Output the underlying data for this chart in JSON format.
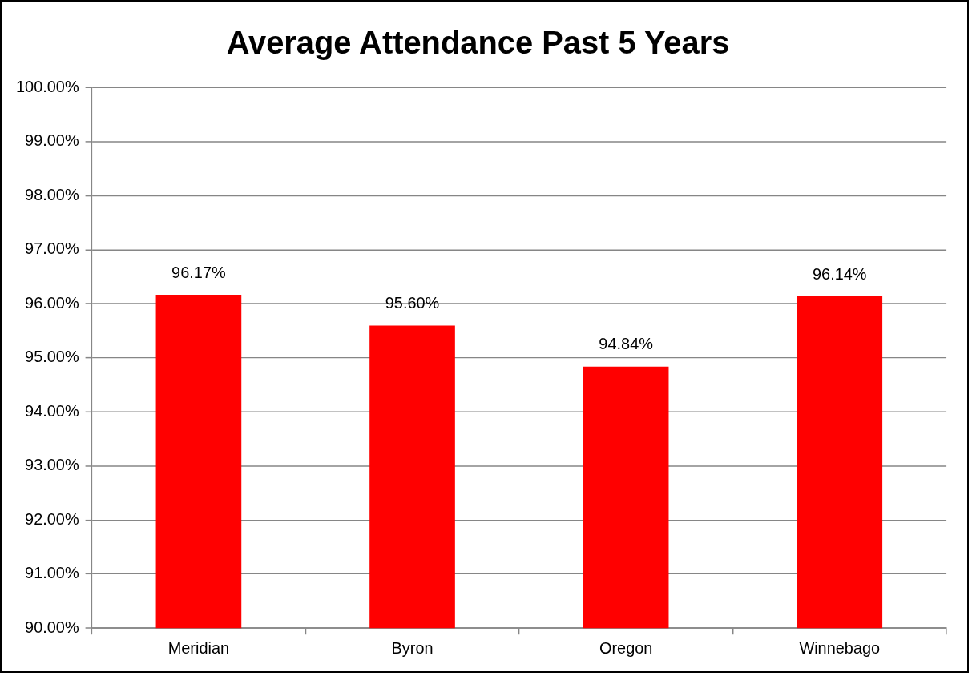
{
  "chart_data": {
    "type": "bar",
    "title": "Average Attendance Past 5 Years",
    "categories": [
      "Meridian",
      "Byron",
      "Oregon",
      "Winnebago"
    ],
    "values": [
      96.17,
      95.6,
      94.84,
      96.14
    ],
    "value_labels": [
      "96.17%",
      "95.60%",
      "94.84%",
      "96.14%"
    ],
    "color": "#ff0000",
    "ylim": [
      90,
      100
    ],
    "yticks": [
      {
        "value": 90,
        "label": "90.00%"
      },
      {
        "value": 91,
        "label": "91.00%"
      },
      {
        "value": 92,
        "label": "92.00%"
      },
      {
        "value": 93,
        "label": "93.00%"
      },
      {
        "value": 94,
        "label": "94.00%"
      },
      {
        "value": 95,
        "label": "95.00%"
      },
      {
        "value": 96,
        "label": "96.00%"
      },
      {
        "value": 97,
        "label": "97.00%"
      },
      {
        "value": 98,
        "label": "98.00%"
      },
      {
        "value": 99,
        "label": "99.00%"
      },
      {
        "value": 100,
        "label": "100.00%"
      }
    ],
    "grid": "y",
    "legend": false
  }
}
